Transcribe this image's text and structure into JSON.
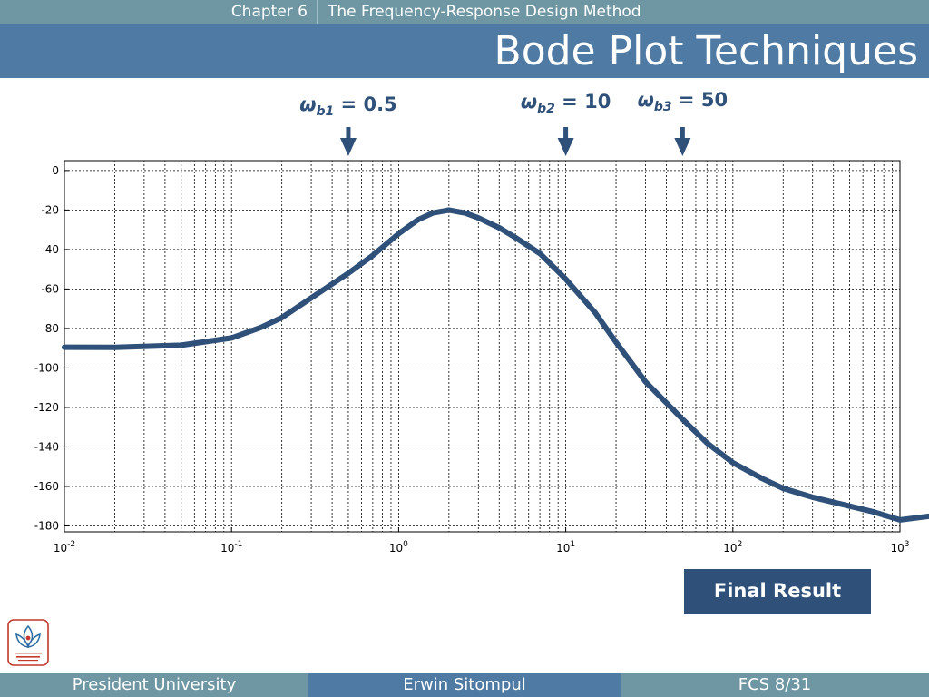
{
  "header": {
    "chapter": "Chapter 6",
    "subject": "The Frequency-Response Design Method",
    "title": "Bode Plot Techniques"
  },
  "breakpoints": [
    {
      "sub": "b1",
      "text": "= 0.5",
      "value": 0.5
    },
    {
      "sub": "b2",
      "text": "= 10",
      "value": 10
    },
    {
      "sub": "b3",
      "text": "= 50",
      "value": 50
    }
  ],
  "chart_data": {
    "type": "line",
    "xscale": "log",
    "xlim": [
      0.01,
      1000
    ],
    "ylim": [
      -183,
      5
    ],
    "grid": true,
    "y_ticks": [
      0,
      -20,
      -40,
      -60,
      -80,
      -100,
      -120,
      -140,
      -160,
      -180
    ],
    "x_ticks": [
      {
        "base": "10",
        "exp": "-2"
      },
      {
        "base": "10",
        "exp": "-1"
      },
      {
        "base": "10",
        "exp": "0"
      },
      {
        "base": "10",
        "exp": "1"
      },
      {
        "base": "10",
        "exp": "2"
      },
      {
        "base": "10",
        "exp": "3"
      }
    ],
    "series": [
      {
        "color": "#2e5079",
        "points": [
          [
            0.01,
            -89.5
          ],
          [
            0.02,
            -89.6
          ],
          [
            0.05,
            -88.5
          ],
          [
            0.1,
            -84.8
          ],
          [
            0.15,
            -79.5
          ],
          [
            0.2,
            -74.5
          ],
          [
            0.3,
            -64.5
          ],
          [
            0.5,
            -52
          ],
          [
            0.7,
            -43
          ],
          [
            1.0,
            -32
          ],
          [
            1.3,
            -25
          ],
          [
            1.6,
            -21.5
          ],
          [
            2.0,
            -20
          ],
          [
            2.5,
            -21.5
          ],
          [
            3.0,
            -24
          ],
          [
            4.0,
            -29
          ],
          [
            5.0,
            -34
          ],
          [
            7.0,
            -42
          ],
          [
            10.0,
            -55
          ],
          [
            15.0,
            -72
          ],
          [
            20.0,
            -87
          ],
          [
            30.0,
            -107
          ],
          [
            50.0,
            -126
          ],
          [
            70.0,
            -138
          ],
          [
            100.0,
            -148
          ],
          [
            150.0,
            -156
          ],
          [
            200.0,
            -161
          ],
          [
            300.0,
            -165.5
          ],
          [
            500.0,
            -170
          ],
          [
            700.0,
            -173
          ],
          [
            1000.0,
            -177
          ]
        ]
      }
    ]
  },
  "button": {
    "label": "Final Result"
  },
  "footer": {
    "left": "President University",
    "center": "Erwin Sitompul",
    "right": "FCS 8/31"
  },
  "logo": {
    "name": "president-university-logo",
    "caption": "PRESIDENT UNIVERSITY"
  }
}
